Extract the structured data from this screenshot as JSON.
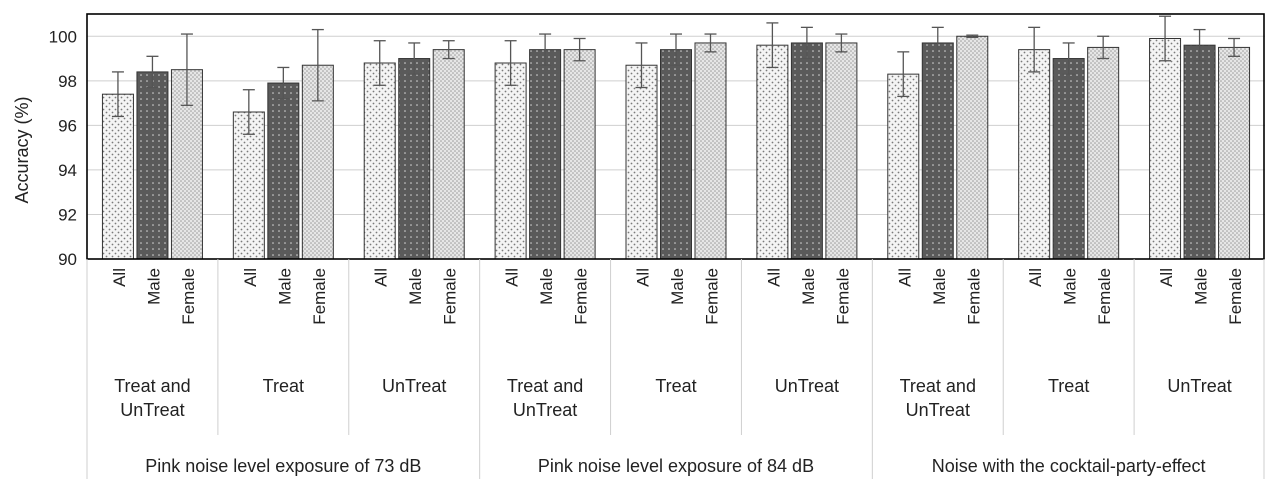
{
  "chart_data": {
    "type": "bar",
    "ylabel": "Accuracy (%)",
    "ylim": [
      90,
      101
    ],
    "yticks": [
      90,
      92,
      94,
      96,
      98,
      100
    ],
    "grid": true,
    "error_bars": true,
    "bar_colors": [
      "#f2f2f2",
      "#595959",
      "#e0e0e0"
    ],
    "bar_patterns": [
      "dotted-light",
      "dotted-dark",
      "dotted-dense"
    ],
    "groups": [
      {
        "label": "Pink noise level exposure of 73 dB",
        "subgroups": [
          {
            "label_lines": [
              "Treat and",
              "UnTreat"
            ],
            "bars": [
              {
                "label": "All",
                "value": 97.4,
                "error": 1.0
              },
              {
                "label": "Male",
                "value": 98.4,
                "error": 0.7
              },
              {
                "label": "Female",
                "value": 98.5,
                "error": 1.6
              }
            ]
          },
          {
            "label_lines": [
              "Treat"
            ],
            "bars": [
              {
                "label": "All",
                "value": 96.6,
                "error": 1.0
              },
              {
                "label": "Male",
                "value": 97.9,
                "error": 0.7
              },
              {
                "label": "Female",
                "value": 98.7,
                "error": 1.6
              }
            ]
          },
          {
            "label_lines": [
              "UnTreat"
            ],
            "bars": [
              {
                "label": "All",
                "value": 98.8,
                "error": 1.0
              },
              {
                "label": "Male",
                "value": 99.0,
                "error": 0.7
              },
              {
                "label": "Female",
                "value": 99.4,
                "error": 0.4
              }
            ]
          }
        ]
      },
      {
        "label": "Pink noise level exposure of 84 dB",
        "subgroups": [
          {
            "label_lines": [
              "Treat and",
              "UnTreat"
            ],
            "bars": [
              {
                "label": "All",
                "value": 98.8,
                "error": 1.0
              },
              {
                "label": "Male",
                "value": 99.4,
                "error": 0.7
              },
              {
                "label": "Female",
                "value": 99.4,
                "error": 0.5
              }
            ]
          },
          {
            "label_lines": [
              "Treat"
            ],
            "bars": [
              {
                "label": "All",
                "value": 98.7,
                "error": 1.0
              },
              {
                "label": "Male",
                "value": 99.4,
                "error": 0.7
              },
              {
                "label": "Female",
                "value": 99.7,
                "error": 0.4
              }
            ]
          },
          {
            "label_lines": [
              "UnTreat"
            ],
            "bars": [
              {
                "label": "All",
                "value": 99.6,
                "error": 1.0
              },
              {
                "label": "Male",
                "value": 99.7,
                "error": 0.7
              },
              {
                "label": "Female",
                "value": 99.7,
                "error": 0.4
              }
            ]
          }
        ]
      },
      {
        "label": "Noise with the cocktail-party-effect",
        "subgroups": [
          {
            "label_lines": [
              "Treat and",
              "UnTreat"
            ],
            "bars": [
              {
                "label": "All",
                "value": 98.3,
                "error": 1.0
              },
              {
                "label": "Male",
                "value": 99.7,
                "error": 0.7
              },
              {
                "label": "Female",
                "value": 100.0,
                "error": 0.05
              }
            ]
          },
          {
            "label_lines": [
              "Treat"
            ],
            "bars": [
              {
                "label": "All",
                "value": 99.4,
                "error": 1.0
              },
              {
                "label": "Male",
                "value": 99.0,
                "error": 0.7
              },
              {
                "label": "Female",
                "value": 99.5,
                "error": 0.5
              }
            ]
          },
          {
            "label_lines": [
              "UnTreat"
            ],
            "bars": [
              {
                "label": "All",
                "value": 99.9,
                "error": 1.0
              },
              {
                "label": "Male",
                "value": 99.6,
                "error": 0.7
              },
              {
                "label": "Female",
                "value": 99.5,
                "error": 0.4
              }
            ]
          }
        ]
      }
    ]
  }
}
